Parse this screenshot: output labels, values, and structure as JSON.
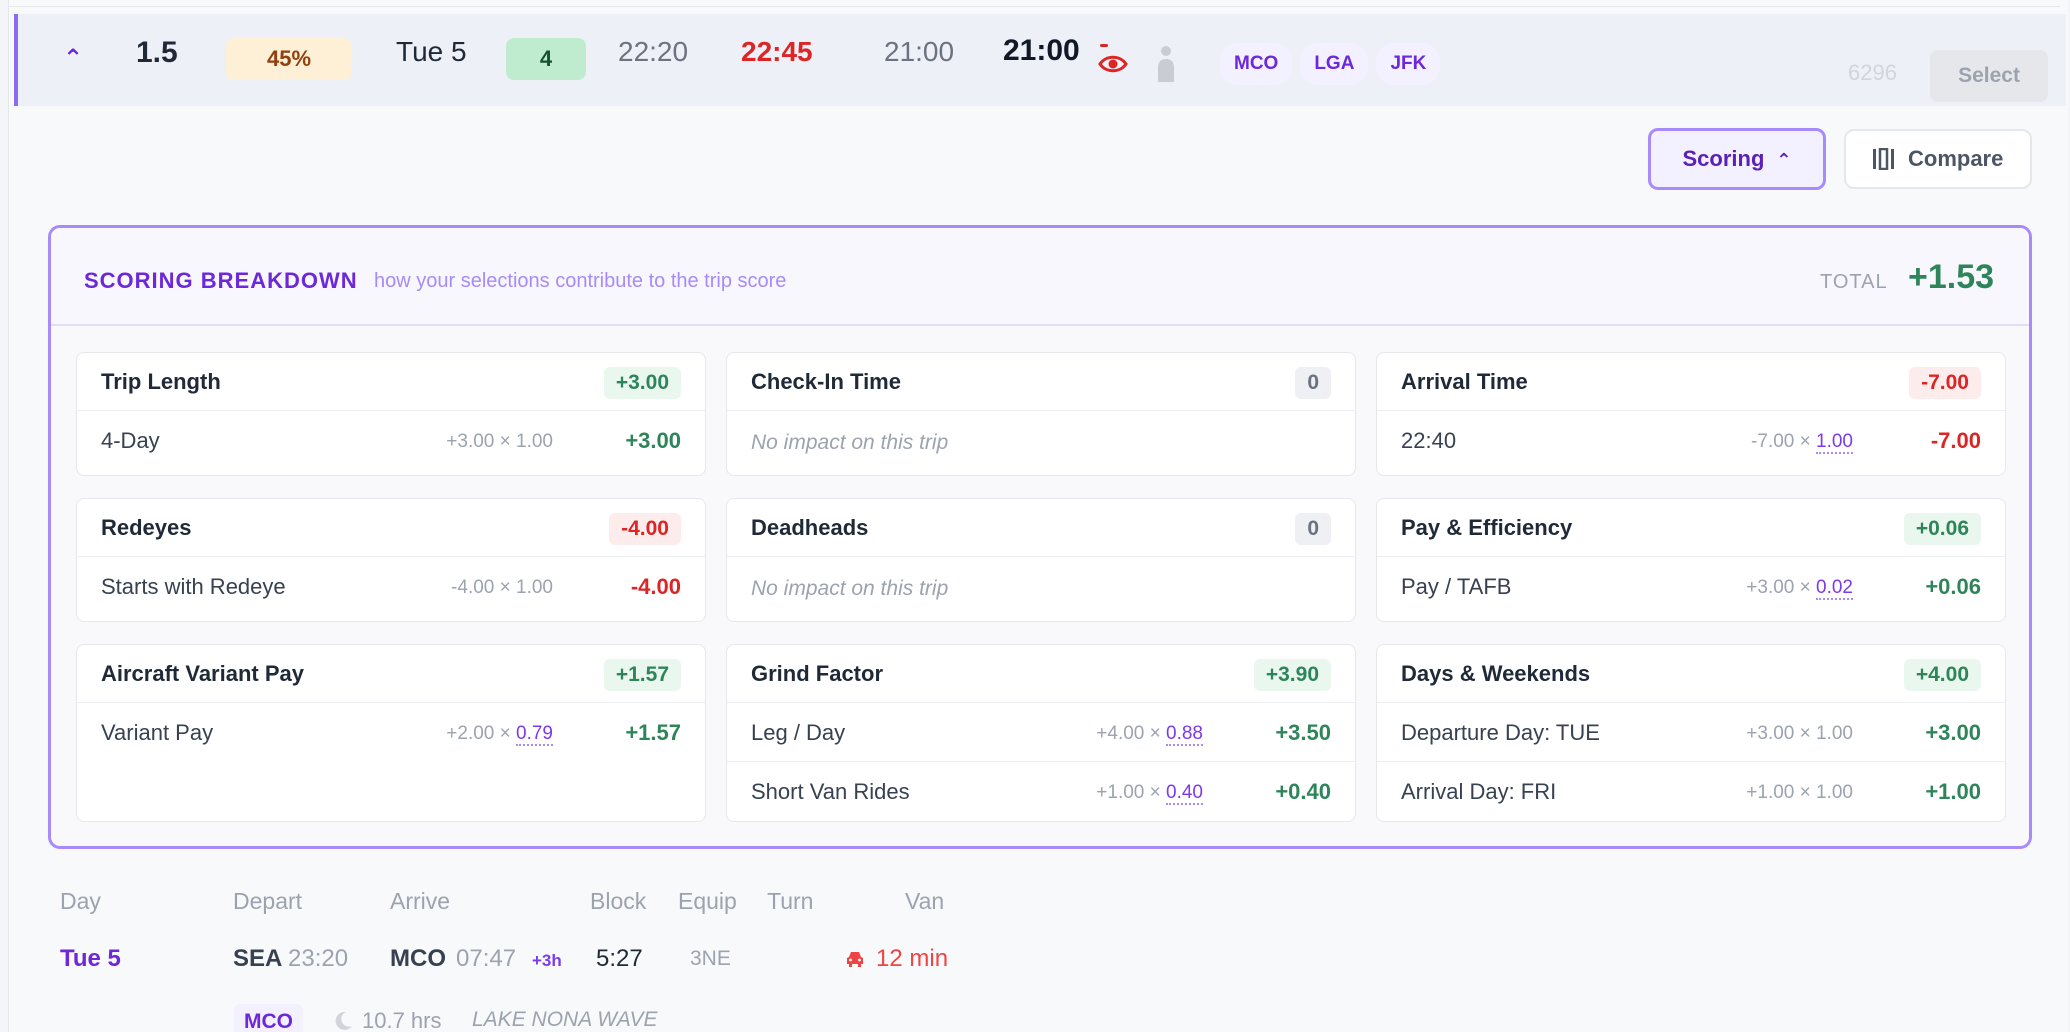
{
  "trip": {
    "score": "1.5",
    "percent": "45%",
    "date": "Tue 5",
    "days": "4",
    "time1": "22:20",
    "time2": "22:45",
    "time3": "21:00",
    "time4": "21:00",
    "airports": [
      "MCO",
      "LGA",
      "JFK"
    ],
    "sequence": "6296",
    "select_label": "Select"
  },
  "actions": {
    "scoring_label": "Scoring",
    "compare_label": "Compare"
  },
  "scoring": {
    "title": "SCORING BREAKDOWN",
    "subtitle": "how your selections contribute to the trip score",
    "total_label": "TOTAL",
    "total_value": "+1.53",
    "no_impact": "No impact on this trip",
    "cards": [
      {
        "title": "Trip Length",
        "badge": "+3.00",
        "tone": "pos",
        "lines": [
          {
            "label": "4-Day",
            "weight": "+3.00",
            "mult": "1.00",
            "mult_hl": false,
            "value": "+3.00",
            "tone": "pos"
          }
        ]
      },
      {
        "title": "Check-In Time",
        "badge": "0",
        "tone": "zero",
        "lines": []
      },
      {
        "title": "Arrival Time",
        "badge": "-7.00",
        "tone": "neg",
        "lines": [
          {
            "label": "22:40",
            "weight": "-7.00",
            "mult": "1.00",
            "mult_hl": true,
            "value": "-7.00",
            "tone": "neg"
          }
        ]
      },
      {
        "title": "Redeyes",
        "badge": "-4.00",
        "tone": "neg",
        "lines": [
          {
            "label": "Starts with Redeye",
            "weight": "-4.00",
            "mult": "1.00",
            "mult_hl": false,
            "value": "-4.00",
            "tone": "neg"
          }
        ]
      },
      {
        "title": "Deadheads",
        "badge": "0",
        "tone": "zero",
        "lines": []
      },
      {
        "title": "Pay & Efficiency",
        "badge": "+0.06",
        "tone": "pos",
        "lines": [
          {
            "label": "Pay / TAFB",
            "weight": "+3.00",
            "mult": "0.02",
            "mult_hl": true,
            "value": "+0.06",
            "tone": "pos"
          }
        ]
      },
      {
        "title": "Aircraft Variant Pay",
        "badge": "+1.57",
        "tone": "pos",
        "lines": [
          {
            "label": "Variant Pay",
            "weight": "+2.00",
            "mult": "0.79",
            "mult_hl": true,
            "value": "+1.57",
            "tone": "pos"
          }
        ]
      },
      {
        "title": "Grind Factor",
        "badge": "+3.90",
        "tone": "pos",
        "lines": [
          {
            "label": "Leg / Day",
            "weight": "+4.00",
            "mult": "0.88",
            "mult_hl": true,
            "value": "+3.50",
            "tone": "pos"
          },
          {
            "label": "Short Van Rides",
            "weight": "+1.00",
            "mult": "0.40",
            "mult_hl": true,
            "value": "+0.40",
            "tone": "pos"
          }
        ]
      },
      {
        "title": "Days & Weekends",
        "badge": "+4.00",
        "tone": "pos",
        "lines": [
          {
            "label": "Departure Day: TUE",
            "weight": "+3.00",
            "mult": "1.00",
            "mult_hl": false,
            "value": "+3.00",
            "tone": "pos"
          },
          {
            "label": "Arrival Day: FRI",
            "weight": "+1.00",
            "mult": "1.00",
            "mult_hl": false,
            "value": "+1.00",
            "tone": "pos"
          }
        ]
      }
    ]
  },
  "legs": {
    "headers": {
      "day": "Day",
      "depart": "Depart",
      "arrive": "Arrive",
      "block": "Block",
      "equip": "Equip",
      "turn": "Turn",
      "van": "Van"
    },
    "rows": [
      {
        "day": "Tue 5",
        "dep_airport": "SEA",
        "dep_time": "23:20",
        "arr_airport": "MCO",
        "arr_time": "07:47",
        "arr_plus": "+3h",
        "block": "5:27",
        "equip": "3NE",
        "van": "12 min"
      }
    ],
    "rest": {
      "airport": "MCO",
      "hours": "10.7 hrs",
      "hotel": "LAKE NONA WAVE"
    }
  }
}
